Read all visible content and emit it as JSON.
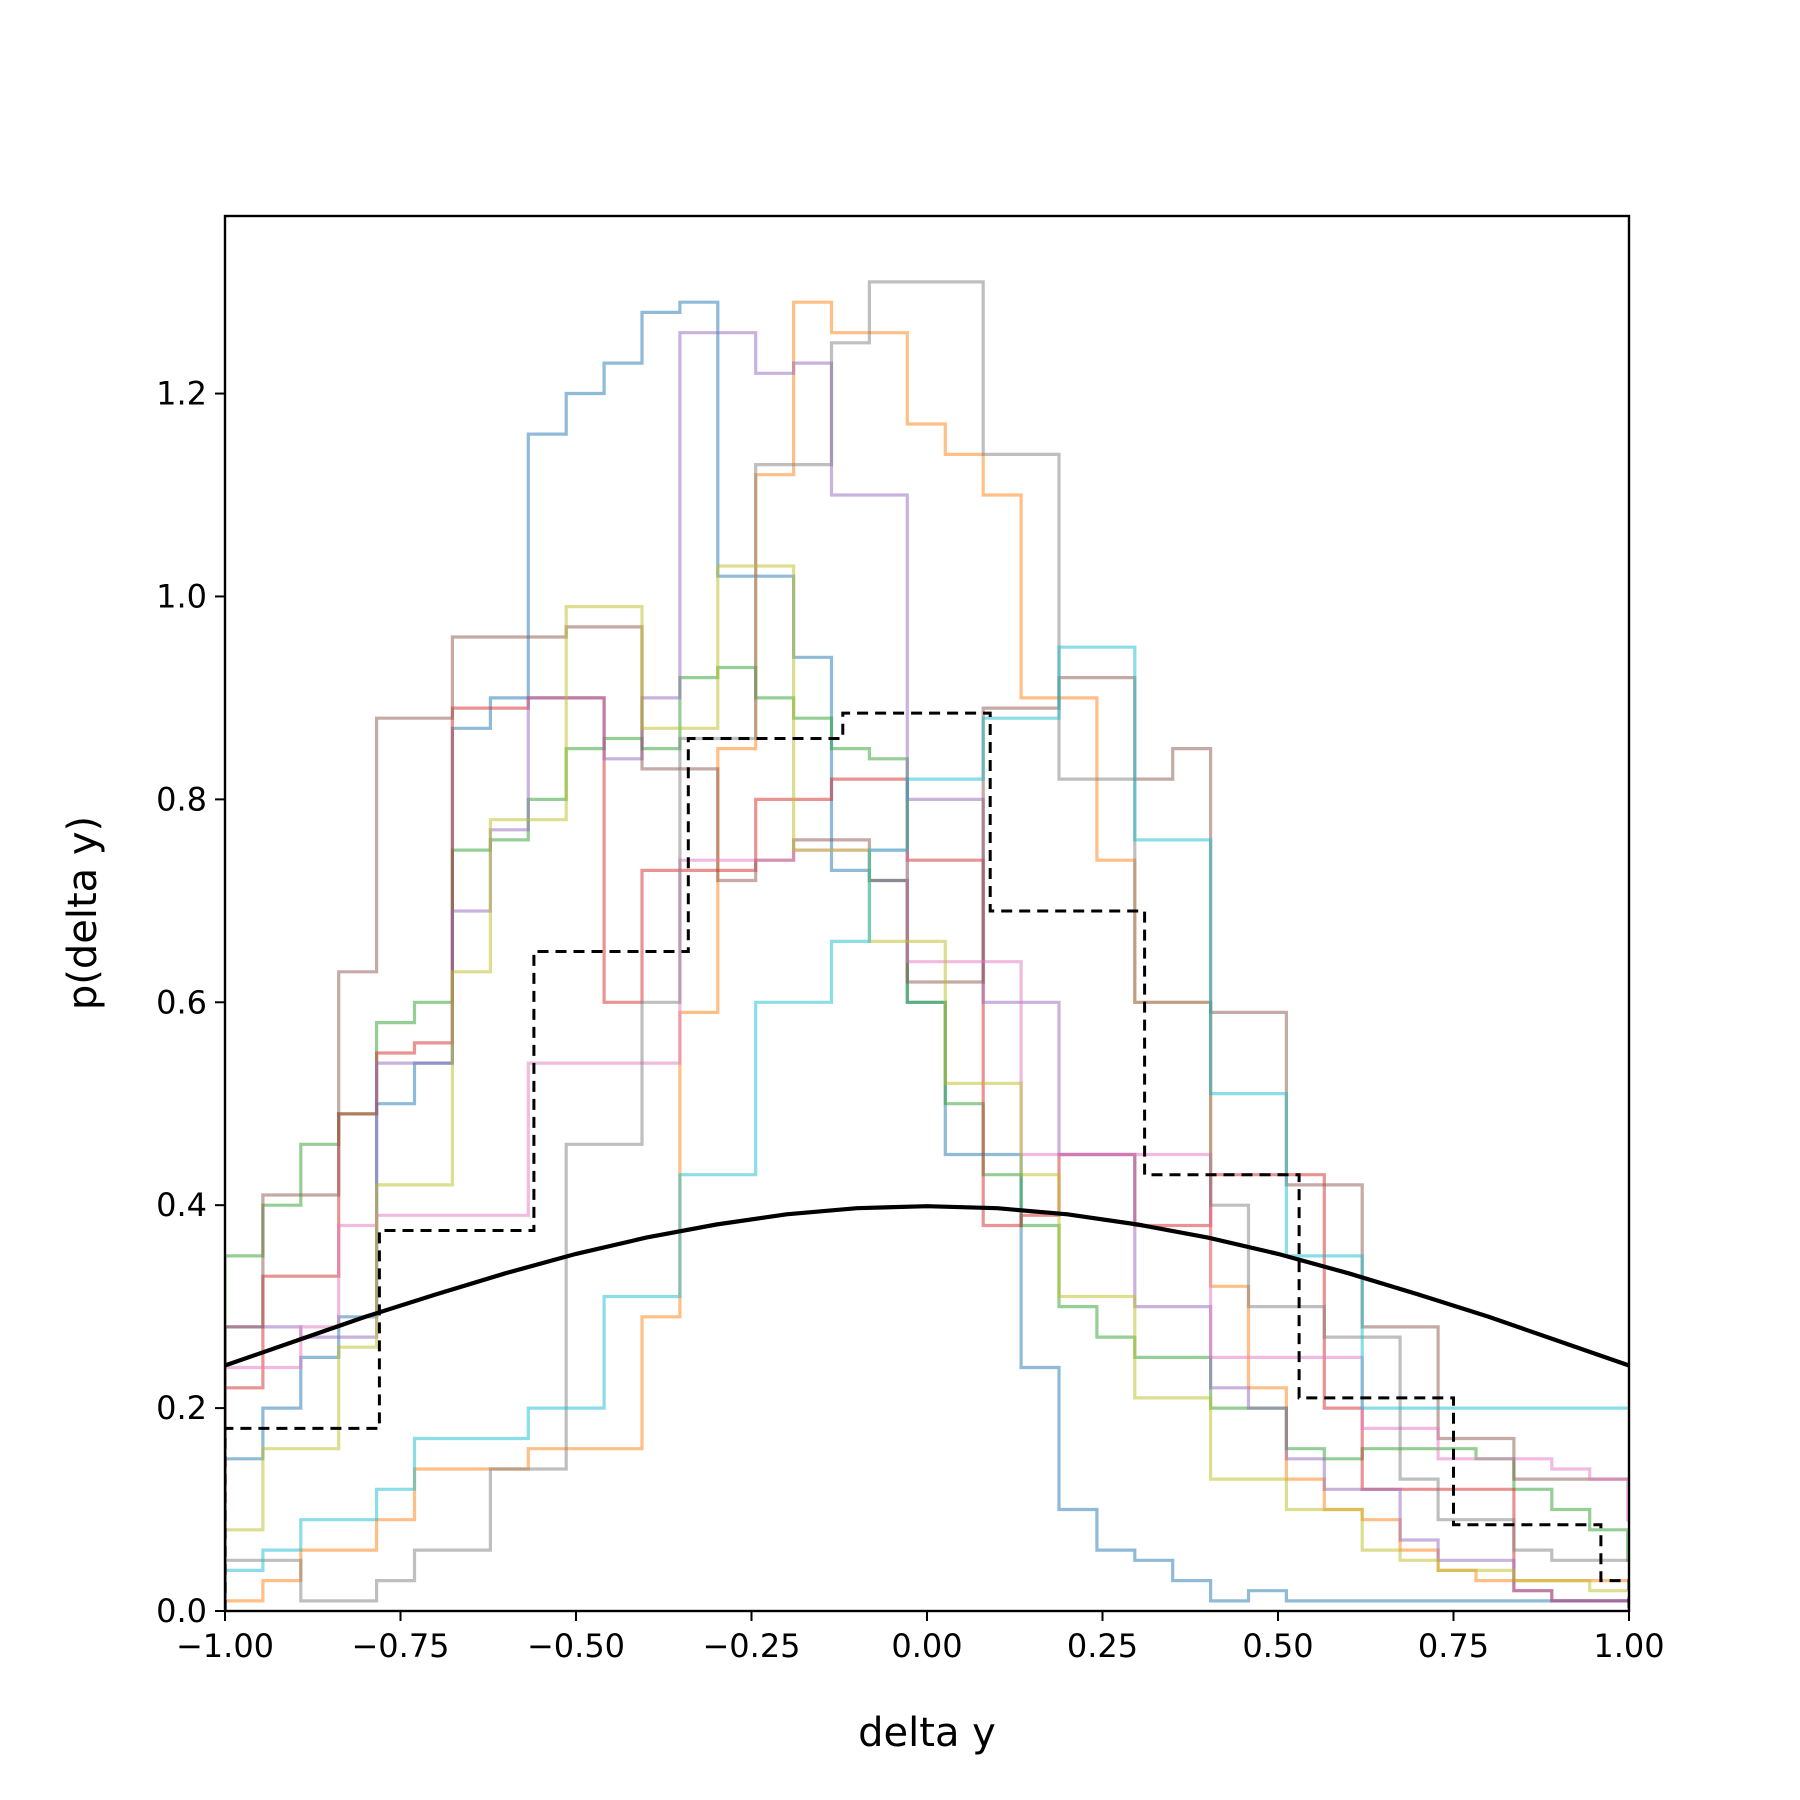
{
  "chart_data": {
    "type": "line",
    "title": "",
    "xlabel": "delta y",
    "ylabel": "p(delta y)",
    "xlim": [
      -1.0,
      1.0
    ],
    "ylim": [
      0.0,
      1.375
    ],
    "xticks": [
      -1.0,
      -0.75,
      -0.5,
      -0.25,
      0.0,
      0.25,
      0.5,
      0.75,
      1.0
    ],
    "xtick_labels": [
      "−1.00",
      "−0.75",
      "−0.50",
      "−0.25",
      "0.00",
      "0.25",
      "0.50",
      "0.75",
      "1.00"
    ],
    "yticks": [
      0.0,
      0.2,
      0.4,
      0.6,
      0.8,
      1.0,
      1.2
    ],
    "ytick_labels": [
      "0.0",
      "0.2",
      "0.4",
      "0.6",
      "0.8",
      "1.0",
      "1.2"
    ],
    "grid": false,
    "step_series": [
      {
        "color": "#1f77b4",
        "x0": -1.0,
        "width": 0.054,
        "values": [
          0.15,
          0.2,
          0.25,
          0.29,
          0.5,
          0.54,
          0.87,
          0.9,
          1.16,
          1.2,
          1.23,
          1.28,
          1.29,
          1.02,
          1.02,
          0.94,
          0.73,
          0.72,
          0.6,
          0.45,
          0.45,
          0.24,
          0.1,
          0.06,
          0.05,
          0.03,
          0.01,
          0.02,
          0.01,
          0.01,
          0.01,
          0.01,
          0.01,
          0.01,
          0.01,
          0.01,
          0.01,
          0.01
        ]
      },
      {
        "color": "#ff7f0e",
        "x0": -1.0,
        "width": 0.054,
        "values": [
          0.01,
          0.03,
          0.06,
          0.06,
          0.09,
          0.14,
          0.14,
          0.14,
          0.16,
          0.16,
          0.16,
          0.29,
          0.59,
          0.85,
          1.12,
          1.29,
          1.26,
          1.26,
          1.17,
          1.14,
          1.1,
          0.9,
          0.9,
          0.74,
          0.6,
          0.6,
          0.32,
          0.22,
          0.13,
          0.1,
          0.09,
          0.06,
          0.04,
          0.03,
          0.03,
          0.03,
          0.03,
          0.03
        ]
      },
      {
        "color": "#2ca02c",
        "x0": -1.0,
        "width": 0.054,
        "values": [
          0.35,
          0.4,
          0.46,
          0.49,
          0.58,
          0.6,
          0.75,
          0.76,
          0.8,
          0.85,
          0.86,
          0.85,
          0.92,
          0.93,
          0.9,
          0.88,
          0.85,
          0.84,
          0.6,
          0.5,
          0.43,
          0.38,
          0.3,
          0.27,
          0.25,
          0.25,
          0.2,
          0.2,
          0.16,
          0.15,
          0.16,
          0.16,
          0.16,
          0.15,
          0.12,
          0.1,
          0.08,
          0.05
        ]
      },
      {
        "color": "#d62728",
        "x0": -1.0,
        "width": 0.054,
        "values": [
          0.22,
          0.33,
          0.33,
          0.49,
          0.55,
          0.56,
          0.89,
          0.89,
          0.9,
          0.9,
          0.6,
          0.73,
          0.73,
          0.73,
          0.8,
          0.8,
          0.82,
          0.82,
          0.74,
          0.74,
          0.38,
          0.39,
          0.45,
          0.45,
          0.38,
          0.38,
          0.43,
          0.43,
          0.43,
          0.2,
          0.12,
          0.12,
          0.12,
          0.12,
          0.02,
          0.01,
          0.01,
          0.01
        ]
      },
      {
        "color": "#9467bd",
        "x0": -1.0,
        "width": 0.054,
        "values": [
          0.28,
          0.28,
          0.27,
          0.27,
          0.54,
          0.54,
          0.69,
          0.77,
          0.9,
          0.9,
          0.84,
          0.9,
          1.26,
          1.26,
          1.22,
          1.23,
          1.1,
          1.1,
          0.8,
          0.8,
          0.6,
          0.6,
          0.45,
          0.45,
          0.3,
          0.3,
          0.22,
          0.2,
          0.15,
          0.12,
          0.12,
          0.07,
          0.05,
          0.05,
          0.02,
          0.01,
          0.01,
          0.01
        ]
      },
      {
        "color": "#8c564b",
        "x0": -1.0,
        "width": 0.054,
        "values": [
          0.28,
          0.41,
          0.41,
          0.63,
          0.88,
          0.88,
          0.96,
          0.96,
          0.96,
          0.97,
          0.97,
          0.83,
          0.83,
          0.72,
          0.74,
          0.76,
          0.76,
          0.72,
          0.62,
          0.62,
          0.89,
          0.89,
          0.92,
          0.92,
          0.82,
          0.85,
          0.59,
          0.59,
          0.42,
          0.42,
          0.28,
          0.28,
          0.17,
          0.17,
          0.13,
          0.13,
          0.13,
          0.13
        ]
      },
      {
        "color": "#e377c2",
        "x0": -1.0,
        "width": 0.054,
        "values": [
          0.24,
          0.24,
          0.28,
          0.38,
          0.39,
          0.39,
          0.39,
          0.39,
          0.54,
          0.54,
          0.54,
          0.54,
          0.74,
          0.74,
          0.74,
          0.75,
          0.75,
          0.75,
          0.64,
          0.64,
          0.64,
          0.45,
          0.45,
          0.45,
          0.45,
          0.45,
          0.25,
          0.25,
          0.25,
          0.25,
          0.18,
          0.18,
          0.15,
          0.15,
          0.15,
          0.14,
          0.13,
          0.09
        ]
      },
      {
        "color": "#7f7f7f",
        "x0": -1.0,
        "width": 0.054,
        "values": [
          0.05,
          0.05,
          0.01,
          0.01,
          0.03,
          0.06,
          0.06,
          0.14,
          0.14,
          0.46,
          0.46,
          0.6,
          0.86,
          0.86,
          1.13,
          1.13,
          1.25,
          1.31,
          1.31,
          1.31,
          1.14,
          1.14,
          0.82,
          0.82,
          0.6,
          0.6,
          0.4,
          0.3,
          0.3,
          0.27,
          0.27,
          0.13,
          0.09,
          0.09,
          0.06,
          0.05,
          0.05,
          0.05
        ]
      },
      {
        "color": "#bcbd22",
        "x0": -1.0,
        "width": 0.054,
        "values": [
          0.08,
          0.16,
          0.16,
          0.26,
          0.42,
          0.42,
          0.63,
          0.78,
          0.78,
          0.99,
          0.99,
          0.87,
          0.87,
          1.03,
          1.03,
          0.75,
          0.75,
          0.66,
          0.66,
          0.52,
          0.52,
          0.43,
          0.31,
          0.31,
          0.21,
          0.21,
          0.13,
          0.13,
          0.1,
          0.1,
          0.06,
          0.05,
          0.04,
          0.04,
          0.03,
          0.03,
          0.02,
          0.02
        ]
      },
      {
        "color": "#17becf",
        "x0": -1.0,
        "width": 0.054,
        "values": [
          0.04,
          0.06,
          0.09,
          0.09,
          0.12,
          0.17,
          0.17,
          0.17,
          0.2,
          0.2,
          0.31,
          0.31,
          0.43,
          0.43,
          0.6,
          0.6,
          0.66,
          0.75,
          0.82,
          0.82,
          0.88,
          0.88,
          0.95,
          0.95,
          0.76,
          0.76,
          0.51,
          0.51,
          0.35,
          0.35,
          0.2,
          0.2,
          0.2,
          0.2,
          0.2,
          0.2,
          0.2,
          0.2
        ]
      }
    ],
    "reference_hist": {
      "color": "#000000",
      "style": "dashed",
      "edges": [
        -1.0,
        -0.78,
        -0.56,
        -0.34,
        -0.12,
        0.09,
        0.31,
        0.53,
        0.75,
        0.96,
        1.0
      ],
      "values": [
        0.18,
        0.375,
        0.65,
        0.86,
        0.885,
        0.69,
        0.43,
        0.21,
        0.085,
        0.03
      ]
    },
    "curve": {
      "color": "#000000",
      "style": "solid",
      "x": [
        -1.0,
        -0.9,
        -0.8,
        -0.7,
        -0.6,
        -0.5,
        -0.4,
        -0.3,
        -0.2,
        -0.1,
        0.0,
        0.1,
        0.2,
        0.3,
        0.4,
        0.5,
        0.6,
        0.7,
        0.8,
        0.9,
        1.0
      ],
      "y": [
        0.242,
        0.266,
        0.29,
        0.312,
        0.333,
        0.352,
        0.368,
        0.381,
        0.391,
        0.397,
        0.399,
        0.397,
        0.391,
        0.381,
        0.368,
        0.352,
        0.333,
        0.312,
        0.29,
        0.266,
        0.242
      ]
    }
  }
}
